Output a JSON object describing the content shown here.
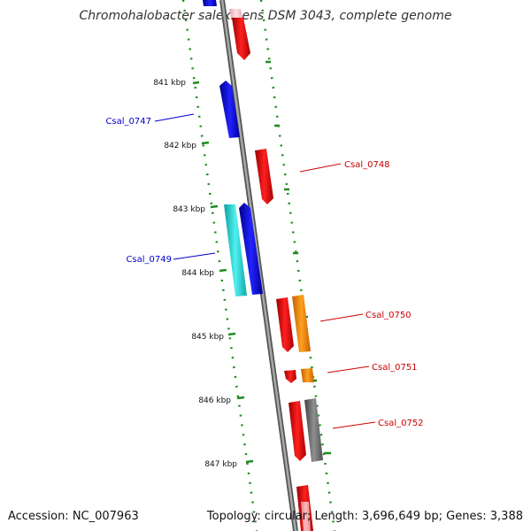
{
  "title": "Chromohalobacter salexigens DSM 3043, complete genome",
  "footer": {
    "accession": "Accession: NC_007963",
    "summary": "Topology: circular; Length: 3,696,649 bp; Genes: 3,388"
  },
  "ticks": [
    "841 kbp",
    "842 kbp",
    "843 kbp",
    "844 kbp",
    "845 kbp",
    "846 kbp",
    "847 kbp"
  ],
  "gene_labels": [
    {
      "text": "Csal_0747",
      "color": "#0000cc"
    },
    {
      "text": "Csal_0748",
      "color": "#cc0000"
    },
    {
      "text": "Csal_0749",
      "color": "#0000cc"
    },
    {
      "text": "Csal_0750",
      "color": "#cc0000"
    },
    {
      "text": "Csal_0751",
      "color": "#cc0000"
    },
    {
      "text": "Csal_0752",
      "color": "#cc0000"
    }
  ],
  "colors": {
    "backbone": "#808080",
    "dots": "#228b22",
    "forward_gene": "#0000ee",
    "reverse_gene": "#ee0000",
    "rna_gene": "#20d0d0",
    "orange_gene": "#ff8c00",
    "gray_gene": "#707070"
  }
}
